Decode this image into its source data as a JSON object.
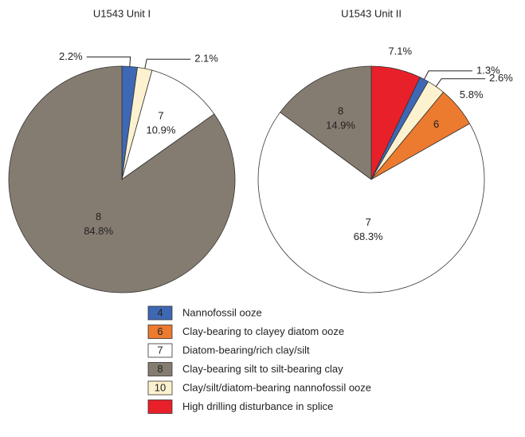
{
  "chart_data": [
    {
      "type": "pie",
      "title": "U1543 Unit I",
      "categories": [
        null,
        null,
        "7",
        "8"
      ],
      "values": [
        2.2,
        2.1,
        10.9,
        84.8
      ],
      "value_labels": [
        "2.2%",
        "2.1%",
        "10.9%",
        "84.8%"
      ],
      "colors": [
        "#3f68b4",
        "#fdf2cf",
        "#ffffff",
        "#857c71"
      ],
      "label_colors": [
        "#3f68b4",
        "#222222",
        "#222222",
        "#222222"
      ]
    },
    {
      "type": "pie",
      "title": "U1543 Unit II",
      "categories": [
        null,
        null,
        null,
        "6",
        "7",
        "8"
      ],
      "values": [
        7.1,
        1.3,
        2.6,
        5.8,
        68.3,
        14.9
      ],
      "value_labels": [
        "7.1%",
        "1.3%",
        "2.6%",
        "5.8%",
        "68.3%",
        "14.9%"
      ],
      "colors": [
        "#e8202a",
        "#3f68b4",
        "#fdf2cf",
        "#ec7a2f",
        "#ffffff",
        "#857c71"
      ],
      "label_colors": [
        "#e8202a",
        "#3f68b4",
        "#222222",
        "#ec7a2f",
        "#222222",
        "#222222"
      ]
    }
  ],
  "legend": [
    {
      "code": "4",
      "name": "Nannofossil ooze",
      "color": "#3f68b4",
      "code_color": "#ffffff"
    },
    {
      "code": "6",
      "name": "Clay-bearing to clayey diatom ooze",
      "color": "#ec7a2f",
      "code_color": "#ffffff"
    },
    {
      "code": "7",
      "name": "Diatom-bearing/rich clay/silt",
      "color": "#ffffff",
      "code_color": "#222222"
    },
    {
      "code": "8",
      "name": "Clay-bearing silt to silt-bearing clay",
      "color": "#857c71",
      "code_color": "#ffffff"
    },
    {
      "code": "10",
      "name": "Clay/silt/diatom-bearing nannofossil ooze",
      "color": "#fdf2cf",
      "code_color": "#222222"
    },
    {
      "code": null,
      "name": "High drilling disturbance in splice",
      "color": "#e8202a",
      "code_color": "#ffffff"
    }
  ]
}
